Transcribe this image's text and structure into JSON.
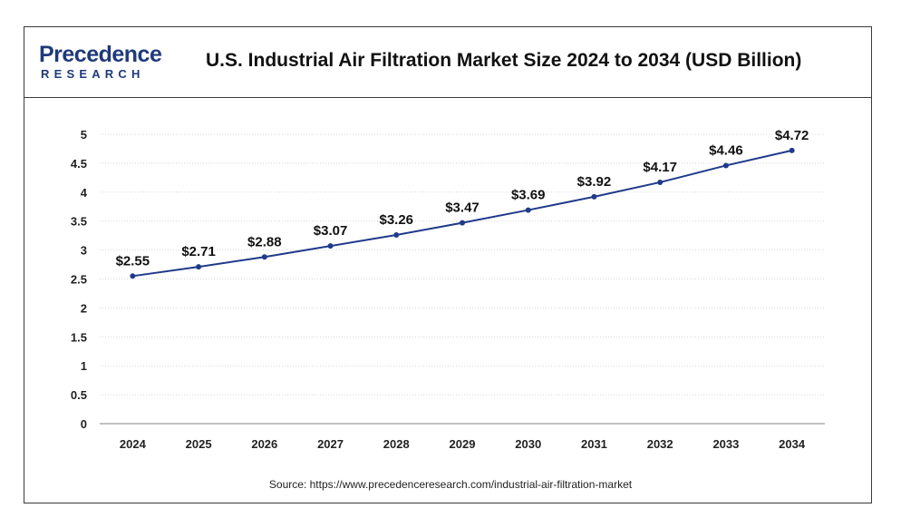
{
  "header": {
    "logo_top": "Precedence",
    "logo_bottom": "RESEARCH",
    "title": "U.S. Industrial Air Filtration Market Size 2024 to 2034 (USD Billion)"
  },
  "source": "Source: https://www.precedenceresearch.com/industrial-air-filtration-market",
  "colors": {
    "line": "#1f3a8a",
    "point": "#1f3a8a",
    "grid": "#d8d8d8",
    "axis": "#9a9a9a",
    "brand": "#1f3a7a"
  },
  "chart_data": {
    "type": "line",
    "title": "U.S. Industrial Air Filtration Market Size 2024 to 2034 (USD Billion)",
    "categories": [
      "2024",
      "2025",
      "2026",
      "2027",
      "2028",
      "2029",
      "2030",
      "2031",
      "2032",
      "2033",
      "2034"
    ],
    "series": [
      {
        "values": [
          2.55,
          2.71,
          2.88,
          3.07,
          3.26,
          3.47,
          3.69,
          3.92,
          4.17,
          4.46,
          4.72
        ],
        "labels": [
          "$2.55",
          "$2.71",
          "$2.88",
          "$3.07",
          "$3.26",
          "$3.47",
          "$3.69",
          "$3.92",
          "$4.17",
          "$4.46",
          "$4.72"
        ]
      }
    ],
    "ylim": [
      0,
      5
    ],
    "yticks": [
      "0",
      "0.5",
      "1",
      "1.5",
      "2",
      "2.5",
      "3",
      "3.5",
      "4",
      "4.5",
      "5"
    ],
    "grid": true,
    "legend": "none"
  }
}
